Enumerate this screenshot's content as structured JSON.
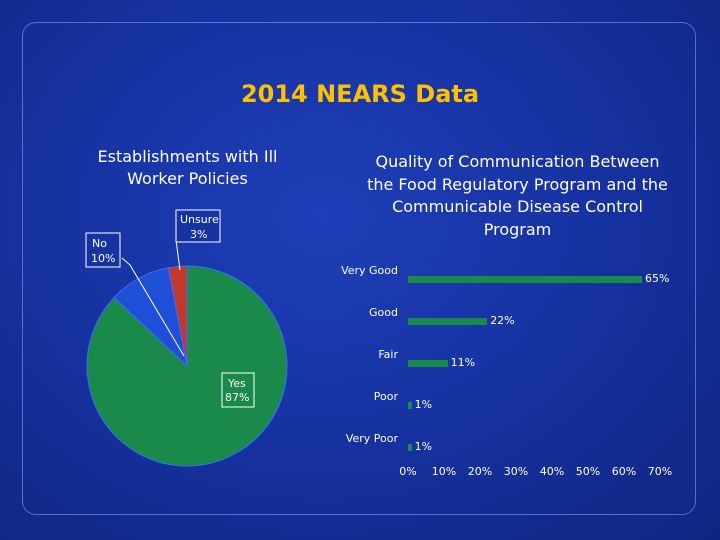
{
  "title": "2014 NEARS Data",
  "chart_data": [
    {
      "type": "pie",
      "title": "Establishments with Ill Worker Policies",
      "slices": [
        {
          "label": "Yes",
          "value": 87,
          "display": "87%",
          "color": "#1a8a4a"
        },
        {
          "label": "No",
          "value": 10,
          "display": "10%",
          "color": "#1f4fd6"
        },
        {
          "label": "Unsure",
          "value": 3,
          "display": "3%",
          "color": "#c0392b"
        }
      ]
    },
    {
      "type": "bar",
      "orientation": "horizontal",
      "title": "Quality of Communication Between the Food Regulatory Program and the Communicable Disease Control Program",
      "categories": [
        "Very Good",
        "Good",
        "Fair",
        "Poor",
        "Very Poor"
      ],
      "values": [
        65,
        22,
        11,
        1,
        1
      ],
      "value_labels": [
        "65%",
        "22%",
        "11%",
        "1%",
        "1%"
      ],
      "xlim": [
        0,
        70
      ],
      "xticks": [
        "0%",
        "10%",
        "20%",
        "30%",
        "40%",
        "50%",
        "60%",
        "70%"
      ],
      "bar_color": "#1a8a4a"
    }
  ]
}
